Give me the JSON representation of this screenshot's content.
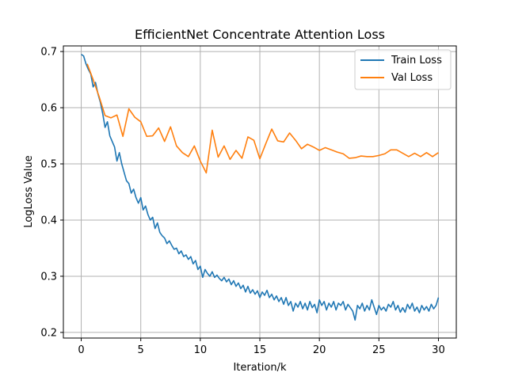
{
  "chart_data": {
    "type": "line",
    "title": "EfficientNet Concentrate Attention Loss",
    "xlabel": "Iteration/k",
    "ylabel": "LogLoss Value",
    "xlim": [
      -1.5,
      31.5
    ],
    "ylim": [
      0.19,
      0.71
    ],
    "xticks": [
      0,
      5,
      10,
      15,
      20,
      25,
      30
    ],
    "yticks": [
      0.2,
      0.3,
      0.4,
      0.5,
      0.6,
      0.7
    ],
    "ytick_labels": [
      "0.2",
      "0.3",
      "0.4",
      "0.5",
      "0.6",
      "0.7"
    ],
    "grid": true,
    "legend_position": "top-right",
    "series": [
      {
        "name": "Train Loss",
        "color": "#1f77b4",
        "points": [
          [
            0,
            0.695
          ],
          [
            0.2,
            0.692
          ],
          [
            0.4,
            0.678
          ],
          [
            0.6,
            0.668
          ],
          [
            0.8,
            0.66
          ],
          [
            1.0,
            0.637
          ],
          [
            1.2,
            0.645
          ],
          [
            1.4,
            0.625
          ],
          [
            1.6,
            0.61
          ],
          [
            1.8,
            0.59
          ],
          [
            2.0,
            0.565
          ],
          [
            2.2,
            0.575
          ],
          [
            2.4,
            0.55
          ],
          [
            2.6,
            0.54
          ],
          [
            2.8,
            0.53
          ],
          [
            3.0,
            0.505
          ],
          [
            3.2,
            0.52
          ],
          [
            3.4,
            0.5
          ],
          [
            3.6,
            0.485
          ],
          [
            3.8,
            0.47
          ],
          [
            4.0,
            0.465
          ],
          [
            4.2,
            0.448
          ],
          [
            4.4,
            0.455
          ],
          [
            4.6,
            0.44
          ],
          [
            4.8,
            0.43
          ],
          [
            5.0,
            0.44
          ],
          [
            5.2,
            0.418
          ],
          [
            5.4,
            0.425
          ],
          [
            5.6,
            0.41
          ],
          [
            5.8,
            0.4
          ],
          [
            6.0,
            0.405
          ],
          [
            6.2,
            0.385
          ],
          [
            6.4,
            0.395
          ],
          [
            6.6,
            0.378
          ],
          [
            6.8,
            0.372
          ],
          [
            7.0,
            0.368
          ],
          [
            7.2,
            0.358
          ],
          [
            7.4,
            0.363
          ],
          [
            7.6,
            0.355
          ],
          [
            7.8,
            0.348
          ],
          [
            8.0,
            0.35
          ],
          [
            8.2,
            0.34
          ],
          [
            8.4,
            0.345
          ],
          [
            8.6,
            0.335
          ],
          [
            8.8,
            0.338
          ],
          [
            9.0,
            0.33
          ],
          [
            9.2,
            0.335
          ],
          [
            9.4,
            0.322
          ],
          [
            9.6,
            0.328
          ],
          [
            9.8,
            0.312
          ],
          [
            10.0,
            0.318
          ],
          [
            10.2,
            0.298
          ],
          [
            10.4,
            0.312
          ],
          [
            10.6,
            0.305
          ],
          [
            10.8,
            0.3
          ],
          [
            11.0,
            0.308
          ],
          [
            11.2,
            0.298
          ],
          [
            11.4,
            0.302
          ],
          [
            11.6,
            0.296
          ],
          [
            11.8,
            0.292
          ],
          [
            12.0,
            0.298
          ],
          [
            12.2,
            0.29
          ],
          [
            12.4,
            0.295
          ],
          [
            12.6,
            0.285
          ],
          [
            12.8,
            0.292
          ],
          [
            13.0,
            0.282
          ],
          [
            13.2,
            0.288
          ],
          [
            13.4,
            0.278
          ],
          [
            13.6,
            0.284
          ],
          [
            13.8,
            0.272
          ],
          [
            14.0,
            0.282
          ],
          [
            14.2,
            0.27
          ],
          [
            14.4,
            0.276
          ],
          [
            14.6,
            0.268
          ],
          [
            14.8,
            0.274
          ],
          [
            15.0,
            0.262
          ],
          [
            15.2,
            0.272
          ],
          [
            15.4,
            0.266
          ],
          [
            15.6,
            0.275
          ],
          [
            15.8,
            0.262
          ],
          [
            16.0,
            0.268
          ],
          [
            16.2,
            0.258
          ],
          [
            16.4,
            0.265
          ],
          [
            16.6,
            0.255
          ],
          [
            16.8,
            0.262
          ],
          [
            17.0,
            0.25
          ],
          [
            17.2,
            0.262
          ],
          [
            17.4,
            0.248
          ],
          [
            17.6,
            0.255
          ],
          [
            17.8,
            0.238
          ],
          [
            18.0,
            0.252
          ],
          [
            18.2,
            0.245
          ],
          [
            18.4,
            0.255
          ],
          [
            18.6,
            0.242
          ],
          [
            18.8,
            0.252
          ],
          [
            19.0,
            0.24
          ],
          [
            19.2,
            0.255
          ],
          [
            19.4,
            0.244
          ],
          [
            19.6,
            0.25
          ],
          [
            19.8,
            0.235
          ],
          [
            20.0,
            0.258
          ],
          [
            20.2,
            0.248
          ],
          [
            20.4,
            0.255
          ],
          [
            20.6,
            0.24
          ],
          [
            20.8,
            0.252
          ],
          [
            21.0,
            0.245
          ],
          [
            21.2,
            0.255
          ],
          [
            21.4,
            0.24
          ],
          [
            21.6,
            0.252
          ],
          [
            21.8,
            0.248
          ],
          [
            22.0,
            0.255
          ],
          [
            22.2,
            0.24
          ],
          [
            22.4,
            0.25
          ],
          [
            22.6,
            0.244
          ],
          [
            22.8,
            0.238
          ],
          [
            23.0,
            0.222
          ],
          [
            23.2,
            0.248
          ],
          [
            23.4,
            0.242
          ],
          [
            23.6,
            0.252
          ],
          [
            23.8,
            0.238
          ],
          [
            24.0,
            0.248
          ],
          [
            24.2,
            0.24
          ],
          [
            24.4,
            0.258
          ],
          [
            24.6,
            0.245
          ],
          [
            24.8,
            0.232
          ],
          [
            25.0,
            0.248
          ],
          [
            25.2,
            0.24
          ],
          [
            25.4,
            0.245
          ],
          [
            25.6,
            0.238
          ],
          [
            25.8,
            0.25
          ],
          [
            26.0,
            0.245
          ],
          [
            26.2,
            0.255
          ],
          [
            26.4,
            0.24
          ],
          [
            26.6,
            0.248
          ],
          [
            26.8,
            0.236
          ],
          [
            27.0,
            0.244
          ],
          [
            27.2,
            0.236
          ],
          [
            27.4,
            0.25
          ],
          [
            27.6,
            0.242
          ],
          [
            27.8,
            0.252
          ],
          [
            28.0,
            0.238
          ],
          [
            28.2,
            0.245
          ],
          [
            28.4,
            0.235
          ],
          [
            28.6,
            0.248
          ],
          [
            28.8,
            0.24
          ],
          [
            29.0,
            0.246
          ],
          [
            29.2,
            0.238
          ],
          [
            29.4,
            0.25
          ],
          [
            29.6,
            0.242
          ],
          [
            29.8,
            0.248
          ],
          [
            30.0,
            0.262
          ]
        ]
      },
      {
        "name": "Val Loss",
        "color": "#ff7f0e",
        "points": [
          [
            0.5,
            0.678
          ],
          [
            1.0,
            0.65
          ],
          [
            1.5,
            0.62
          ],
          [
            2.0,
            0.586
          ],
          [
            2.5,
            0.582
          ],
          [
            3.0,
            0.587
          ],
          [
            3.5,
            0.549
          ],
          [
            4.0,
            0.598
          ],
          [
            4.5,
            0.583
          ],
          [
            5.0,
            0.575
          ],
          [
            5.5,
            0.549
          ],
          [
            6.0,
            0.55
          ],
          [
            6.5,
            0.564
          ],
          [
            7.0,
            0.54
          ],
          [
            7.5,
            0.566
          ],
          [
            8.0,
            0.532
          ],
          [
            8.5,
            0.52
          ],
          [
            9.0,
            0.513
          ],
          [
            9.5,
            0.532
          ],
          [
            10.0,
            0.505
          ],
          [
            10.5,
            0.484
          ],
          [
            11.0,
            0.56
          ],
          [
            11.5,
            0.512
          ],
          [
            12.0,
            0.532
          ],
          [
            12.5,
            0.508
          ],
          [
            13.0,
            0.524
          ],
          [
            13.5,
            0.51
          ],
          [
            14.0,
            0.548
          ],
          [
            14.5,
            0.542
          ],
          [
            15.0,
            0.509
          ],
          [
            15.5,
            0.536
          ],
          [
            16.0,
            0.562
          ],
          [
            16.5,
            0.541
          ],
          [
            17.0,
            0.539
          ],
          [
            17.5,
            0.555
          ],
          [
            18.0,
            0.542
          ],
          [
            18.5,
            0.527
          ],
          [
            19.0,
            0.535
          ],
          [
            19.5,
            0.53
          ],
          [
            20.0,
            0.524
          ],
          [
            20.5,
            0.529
          ],
          [
            21.0,
            0.525
          ],
          [
            21.5,
            0.521
          ],
          [
            22.0,
            0.518
          ],
          [
            22.5,
            0.51
          ],
          [
            23.0,
            0.511
          ],
          [
            23.5,
            0.514
          ],
          [
            24.0,
            0.513
          ],
          [
            24.5,
            0.513
          ],
          [
            25.0,
            0.515
          ],
          [
            25.5,
            0.518
          ],
          [
            26.0,
            0.525
          ],
          [
            26.5,
            0.525
          ],
          [
            27.0,
            0.519
          ],
          [
            27.5,
            0.513
          ],
          [
            28.0,
            0.519
          ],
          [
            28.5,
            0.513
          ],
          [
            29.0,
            0.52
          ],
          [
            29.5,
            0.513
          ],
          [
            30.0,
            0.52
          ]
        ]
      }
    ]
  }
}
